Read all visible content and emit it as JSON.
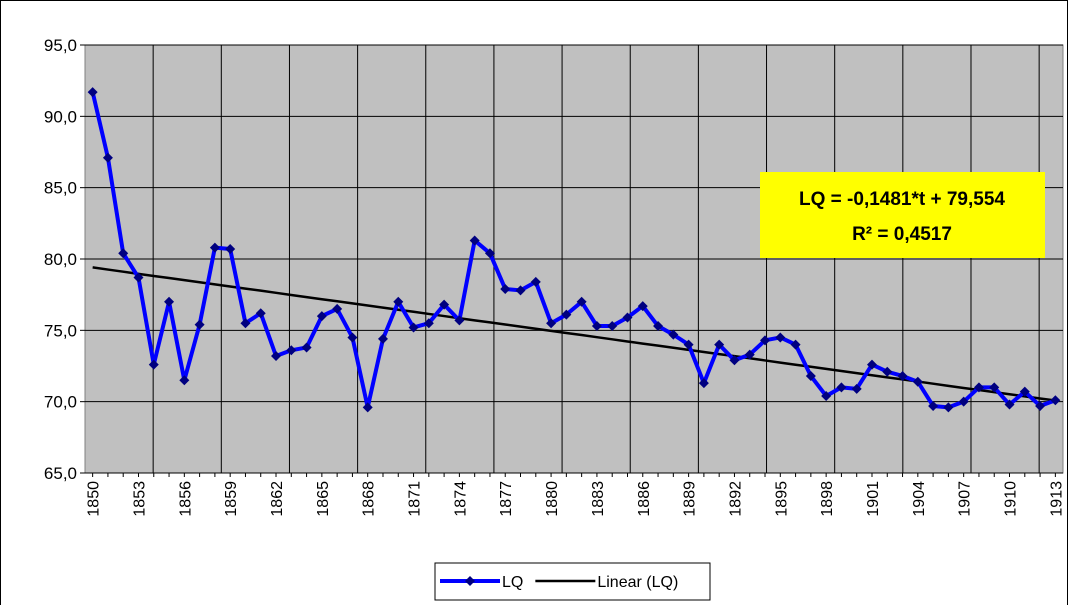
{
  "chart_data": {
    "type": "line",
    "categories": [
      "1850",
      null,
      null,
      "1853",
      null,
      null,
      "1856",
      null,
      null,
      "1859",
      null,
      null,
      "1862",
      null,
      null,
      "1865",
      null,
      null,
      "1868",
      null,
      null,
      "1871",
      null,
      null,
      "1874",
      null,
      null,
      "1877",
      null,
      null,
      "1880",
      null,
      null,
      "1883",
      null,
      null,
      "1886",
      null,
      null,
      "1889",
      null,
      null,
      "1892",
      null,
      null,
      "1895",
      null,
      null,
      "1898",
      null,
      null,
      "1901",
      null,
      null,
      "1904",
      null,
      null,
      "1907",
      null,
      null,
      "1910",
      null,
      null,
      "1913"
    ],
    "series": [
      {
        "name": "LQ",
        "color": "#0000ff",
        "marker_color": "#000080",
        "values": [
          91.7,
          87.1,
          80.4,
          78.7,
          72.6,
          77.0,
          71.5,
          75.4,
          80.8,
          80.7,
          75.5,
          76.2,
          73.2,
          73.6,
          73.8,
          76.0,
          76.5,
          74.5,
          69.6,
          74.4,
          77.0,
          75.2,
          75.5,
          76.8,
          75.7,
          81.3,
          80.4,
          77.9,
          77.8,
          78.4,
          75.5,
          76.1,
          77.0,
          75.3,
          75.3,
          75.9,
          76.7,
          75.3,
          74.7,
          74.0,
          71.3,
          74.0,
          72.9,
          73.3,
          74.3,
          74.5,
          74.0,
          71.8,
          70.4,
          71.0,
          70.9,
          72.6,
          72.1,
          71.8,
          71.4,
          69.7,
          69.6,
          70.0,
          71.0,
          71.0,
          69.8,
          70.7,
          69.7,
          70.1
        ]
      },
      {
        "name": "Linear (LQ)",
        "color": "#000000",
        "values": [
          79.41,
          79.26,
          79.11,
          78.96,
          78.81,
          78.67,
          78.52,
          78.37,
          78.22,
          78.07,
          77.92,
          77.78,
          77.63,
          77.48,
          77.33,
          77.18,
          77.04,
          76.89,
          76.74,
          76.59,
          76.44,
          76.3,
          76.15,
          76.0,
          75.85,
          75.7,
          75.56,
          75.41,
          75.26,
          75.11,
          74.96,
          74.81,
          74.67,
          74.52,
          74.37,
          74.22,
          74.07,
          73.93,
          73.78,
          73.63,
          73.48,
          73.33,
          73.19,
          73.04,
          72.89,
          72.74,
          72.59,
          72.45,
          72.3,
          72.15,
          72.0,
          71.85,
          71.7,
          71.56,
          71.41,
          71.26,
          71.11,
          70.96,
          70.82,
          70.67,
          70.52,
          70.37,
          70.22,
          70.08
        ]
      }
    ],
    "ylim": [
      65,
      95
    ],
    "yticks": [
      {
        "value": 65,
        "label": "65,0"
      },
      {
        "value": 70,
        "label": "70,0"
      },
      {
        "value": 75,
        "label": "75,0"
      },
      {
        "value": 80,
        "label": "80,0"
      },
      {
        "value": 85,
        "label": "85,0"
      },
      {
        "value": 90,
        "label": "90,0"
      },
      {
        "value": 95,
        "label": "95,0"
      }
    ],
    "grid": true,
    "annotation": {
      "lines": [
        "LQ = -0,1481*t + 79,554",
        "R² = 0,4517"
      ],
      "background": "#ffff00"
    },
    "legend": "bottom"
  }
}
